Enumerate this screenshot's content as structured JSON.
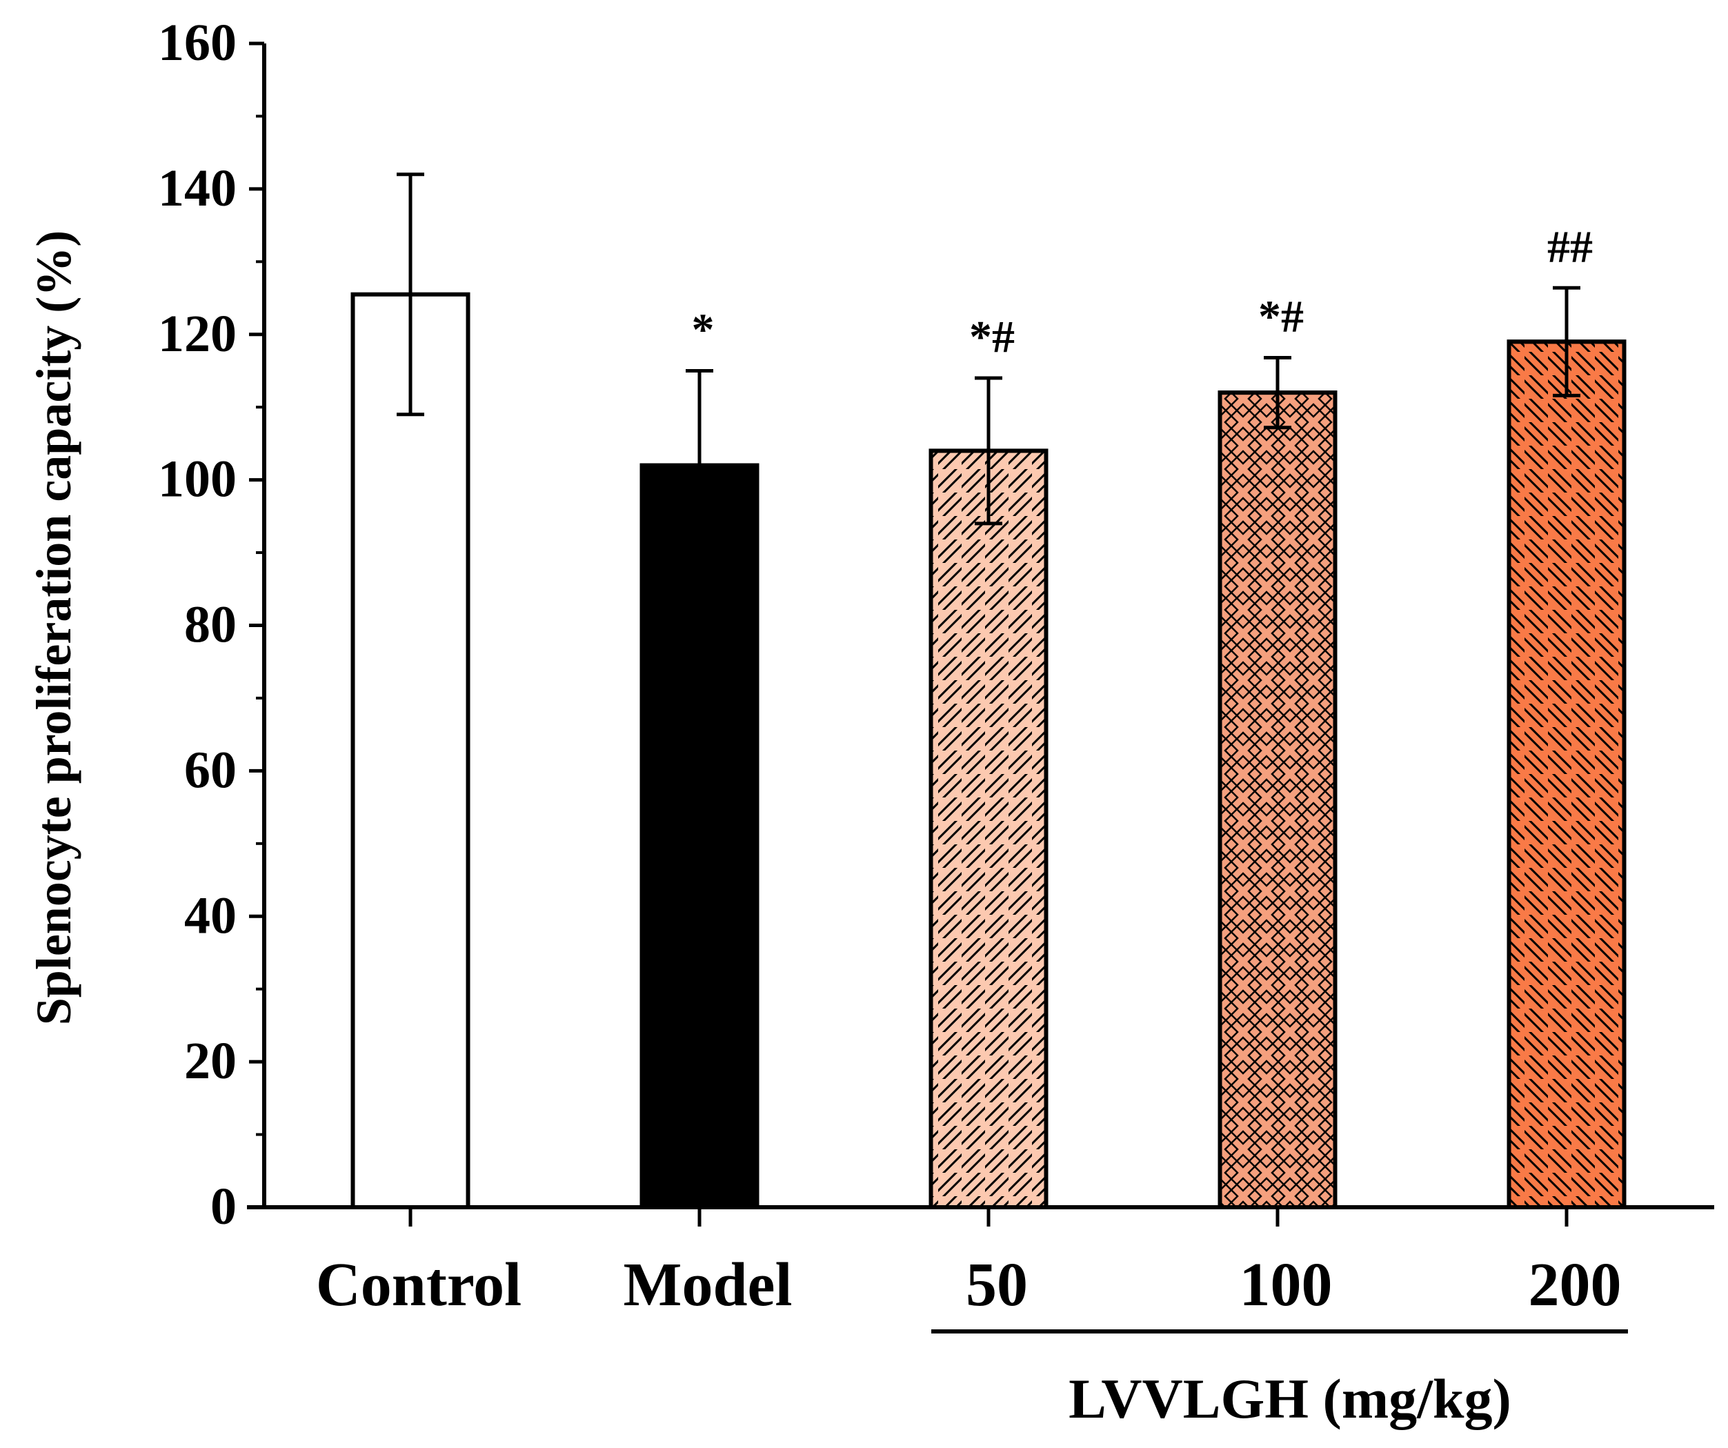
{
  "chart_data": {
    "type": "bar",
    "title": "",
    "ylabel": "Splenocyte proliferation capacity (%)",
    "xlabel": "",
    "ylim": [
      0,
      160
    ],
    "yticks": [
      "0",
      "20",
      "40",
      "60",
      "80",
      "100",
      "120",
      "140",
      "160"
    ],
    "categories": [
      "Control",
      "Model",
      "50",
      "100",
      "200"
    ],
    "values": [
      125.5,
      102,
      104,
      112,
      119
    ],
    "errors": [
      16.5,
      13,
      10,
      4.8,
      7.4
    ],
    "significance": [
      "",
      "*",
      "*#",
      "*#",
      "##"
    ],
    "bar_colors": [
      "#ffffff",
      "#000000",
      "#fcc9b0",
      "#f5a07e",
      "#f97a47"
    ],
    "bar_patterns": [
      "none",
      "solid",
      "diagonal-right",
      "crosshatch",
      "diagonal-left"
    ],
    "group_label": "LVVLGH (mg/kg)",
    "group_categories": [
      "50",
      "100",
      "200"
    ]
  }
}
